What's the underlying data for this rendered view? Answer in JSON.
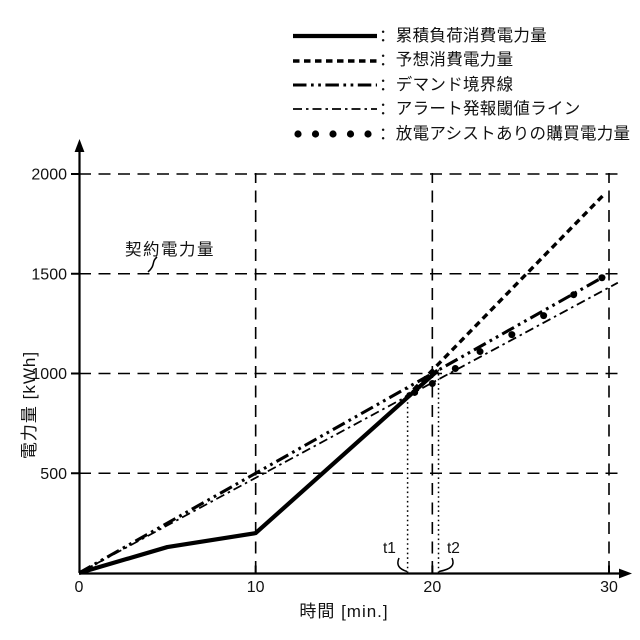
{
  "legend": {
    "items": [
      {
        "label": "：累積負荷消費電力量"
      },
      {
        "label": "：予想消費電力量"
      },
      {
        "label": "：デマンド境界線"
      },
      {
        "label": "：アラート発報閾値ライン"
      },
      {
        "label": "：放電アシストありの購買電力量"
      }
    ]
  },
  "chart_data": {
    "type": "line",
    "title": "",
    "xlabel": "時間 [min.]",
    "ylabel": "電力量 [kWh]",
    "xlim": [
      0,
      30
    ],
    "ylim": [
      0,
      2000
    ],
    "x_ticks": [
      0,
      10,
      20,
      30
    ],
    "y_ticks": [
      500,
      1000,
      1500,
      2000
    ],
    "grid": true,
    "legend_position": "top-right",
    "series": [
      {
        "id": "cumulative-load",
        "name": "累積負荷消費電力量",
        "style": "solid-thick",
        "points": [
          [
            0,
            0
          ],
          [
            5,
            130
          ],
          [
            10,
            200
          ],
          [
            20.3,
            1015
          ]
        ]
      },
      {
        "id": "predicted-consumption",
        "name": "予想消費電力量",
        "style": "dashed",
        "points": [
          [
            18.5,
            880
          ],
          [
            29.8,
            1905
          ]
        ]
      },
      {
        "id": "demand-boundary",
        "name": "デマンド境界線",
        "style": "dash-dot-dot",
        "points": [
          [
            0,
            0
          ],
          [
            30,
            1500
          ]
        ]
      },
      {
        "id": "alert-threshold",
        "name": "アラート発報閾値ライン",
        "style": "dash-dot",
        "points": [
          [
            0,
            0
          ],
          [
            30.5,
            1455
          ]
        ]
      },
      {
        "id": "assisted-purchase",
        "name": "放電アシストありの購買電力量",
        "style": "dots",
        "points": [
          [
            19,
            905
          ],
          [
            20,
            950
          ],
          [
            21.3,
            1025
          ],
          [
            22.7,
            1110
          ],
          [
            24.5,
            1195
          ],
          [
            26.3,
            1290
          ],
          [
            28,
            1395
          ],
          [
            29.6,
            1480
          ]
        ]
      }
    ],
    "annotations": {
      "contract_power": {
        "label": "契約電力量",
        "y": 1500
      },
      "t1": {
        "label": "t1",
        "x": 18.6,
        "y_top": 930
      },
      "t2": {
        "label": "t2",
        "x": 20.35,
        "y_top": 1020
      }
    },
    "line_color": "#000000",
    "background_color": "#ffffff"
  }
}
